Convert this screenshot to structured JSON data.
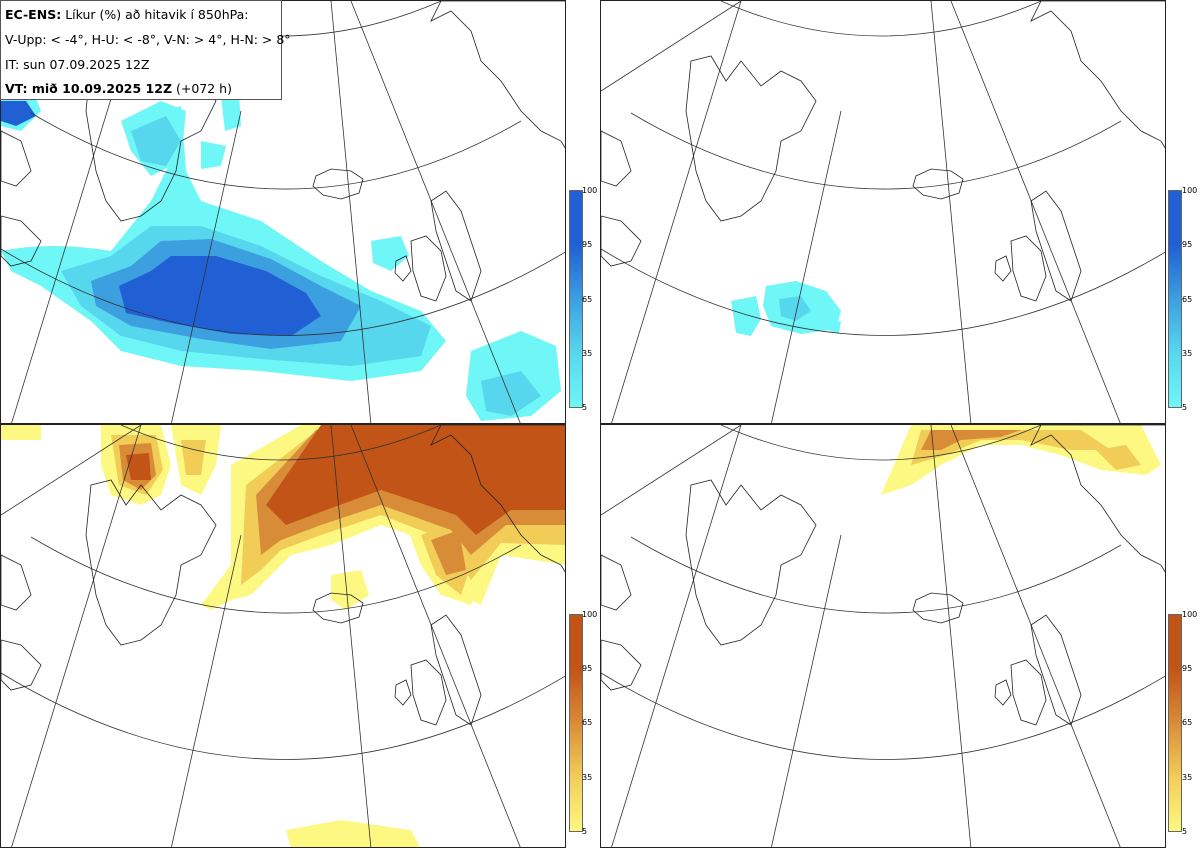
{
  "header": {
    "model": "EC-ENS:",
    "description": "Líkur (%) að hitavik í 850hPa:",
    "categories": "V-Upp: < -4°, H-U: < -8°, V-N: > 4°, H-N: > 8°",
    "init_time": "IT: sun 07.09.2025 12Z",
    "valid_label": "VT: mið 10.09.2025 12Z",
    "lead": "(+072 h)"
  },
  "colorbar": {
    "ticks": [
      "100",
      "95",
      "65",
      "35",
      "5"
    ],
    "cold_colors": [
      "#6ff6f6",
      "#57d7ee",
      "#3c9fe0",
      "#2060d4"
    ],
    "warm_colors": [
      "#fdf882",
      "#f1cd58",
      "#d98c38",
      "#c25418"
    ]
  },
  "panels": [
    {
      "id": "top-left",
      "type": "cold",
      "threshold": "< -4°"
    },
    {
      "id": "top-right",
      "type": "cold",
      "threshold": "< -8°"
    },
    {
      "id": "bottom-left",
      "type": "warm",
      "threshold": "> 4°"
    },
    {
      "id": "bottom-right",
      "type": "warm",
      "threshold": "> 8°"
    }
  ]
}
